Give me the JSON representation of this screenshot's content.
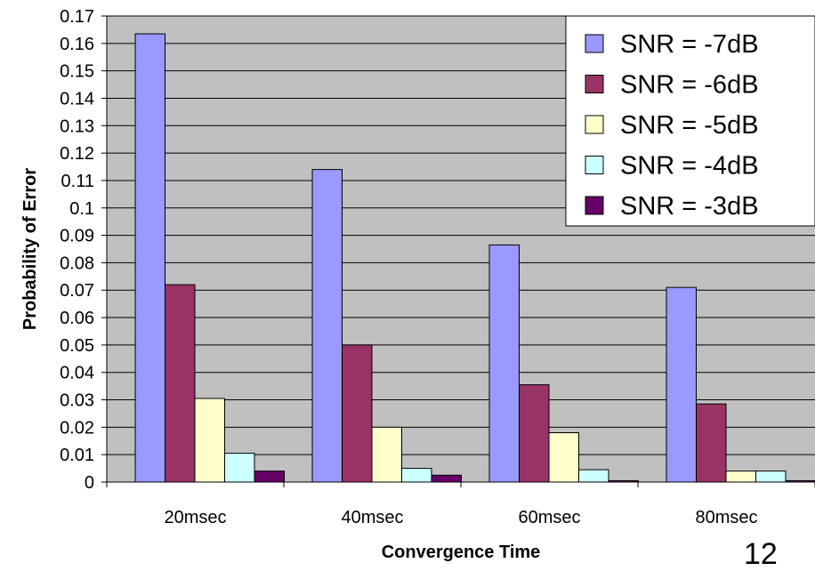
{
  "chart_data": {
    "type": "bar",
    "title": "",
    "xlabel": "Convergence Time",
    "ylabel": "Probability of Error",
    "categories": [
      "20msec",
      "40msec",
      "60msec",
      "80msec"
    ],
    "ylim": [
      0,
      0.17
    ],
    "ytick_step": 0.01,
    "yticks": [
      "0",
      "0.01",
      "0.02",
      "0.03",
      "0.04",
      "0.05",
      "0.06",
      "0.07",
      "0.08",
      "0.09",
      "0.1",
      "0.11",
      "0.12",
      "0.13",
      "0.14",
      "0.15",
      "0.16",
      "0.17"
    ],
    "grid": true,
    "legend_position": "top-right",
    "series": [
      {
        "name": "SNR = -7dB",
        "color": "#9999ff",
        "values": [
          0.1635,
          0.114,
          0.0865,
          0.071
        ]
      },
      {
        "name": "SNR = -6dB",
        "color": "#993366",
        "values": [
          0.072,
          0.05,
          0.0355,
          0.0285
        ]
      },
      {
        "name": "SNR = -5dB",
        "color": "#ffffcc",
        "values": [
          0.0305,
          0.02,
          0.018,
          0.004
        ]
      },
      {
        "name": "SNR = -4dB",
        "color": "#ccffff",
        "values": [
          0.0105,
          0.005,
          0.0045,
          0.004
        ]
      },
      {
        "name": "SNR = -3dB",
        "color": "#660066",
        "values": [
          0.004,
          0.0025,
          0.0005,
          0.0005
        ]
      }
    ]
  },
  "page_number": "12"
}
